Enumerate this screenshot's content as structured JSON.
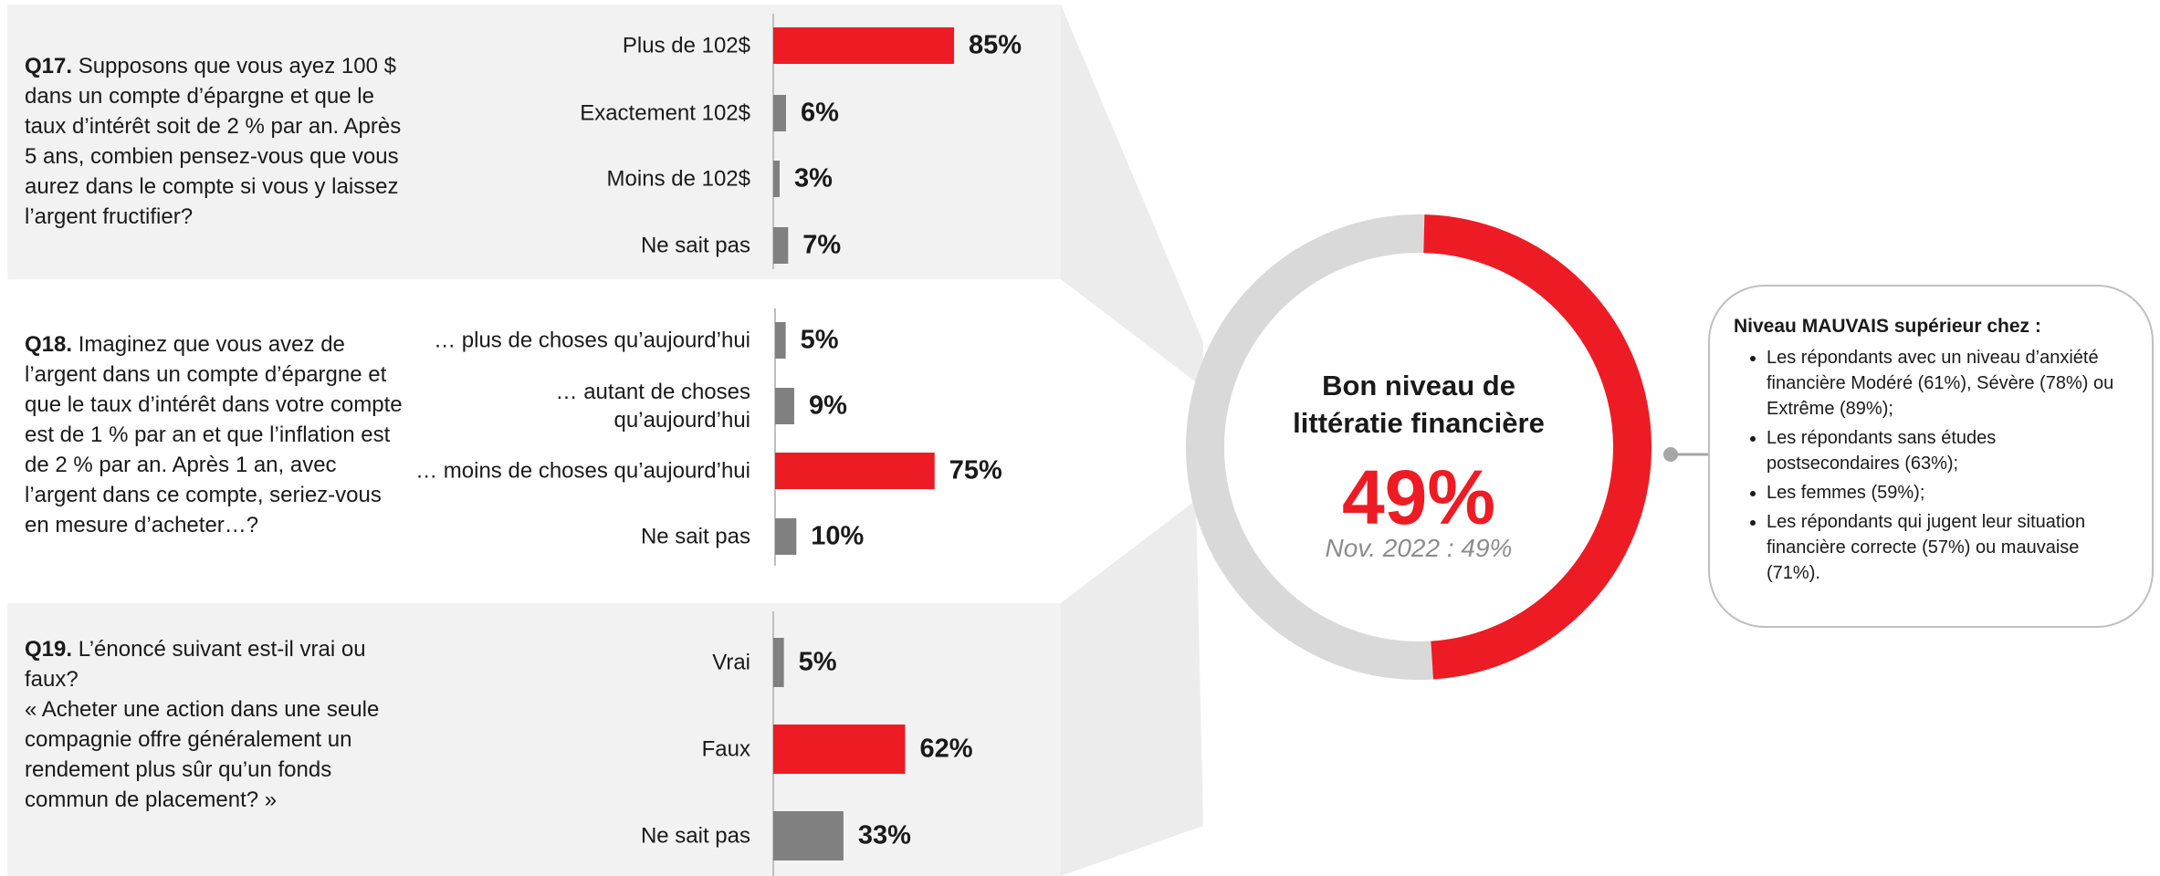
{
  "chart_data": [
    {
      "type": "bar",
      "question_number": "Q17.",
      "question": "Supposons que vous ayez 100 $ dans un compte d’épargne et que le taux d’intérêt soit de 2 % par an. Après 5 ans, combien pensez-vous que vous aurez dans le compte si vous y laissez l’argent fructifier?",
      "categories": [
        "Plus de 102$",
        "Exactement 102$",
        "Moins de 102$",
        "Ne sait pas"
      ],
      "values": [
        85,
        6,
        3,
        7
      ],
      "value_labels": [
        "85%",
        "6%",
        "3%",
        "7%"
      ],
      "colors": [
        "#ed1c24",
        "#808080",
        "#808080",
        "#808080"
      ]
    },
    {
      "type": "bar",
      "question_number": "Q18.",
      "question": "Imaginez que vous avez de l’argent dans un compte d’épargne et que le taux d’intérêt dans votre compte est de 1 % par an et que l’inflation est de 2 % par an. Après 1 an, avec l’argent dans ce compte, seriez-vous en mesure d’acheter…?",
      "categories": [
        "… plus de choses qu’aujourd’hui",
        "… autant de choses\nqu’aujourd’hui",
        "… moins de choses qu’aujourd’hui",
        "Ne sait pas"
      ],
      "values": [
        5,
        9,
        75,
        10
      ],
      "value_labels": [
        "5%",
        "9%",
        "75%",
        "10%"
      ],
      "colors": [
        "#808080",
        "#808080",
        "#ed1c24",
        "#808080"
      ]
    },
    {
      "type": "bar",
      "question_number": "Q19.",
      "question": "L’énoncé suivant est-il vrai ou faux?\n« Acheter une action dans une seule compagnie offre généralement un rendement plus sûr qu’un fonds commun de placement? »",
      "categories": [
        "Vrai",
        "Faux",
        "Ne sait pas"
      ],
      "values": [
        5,
        62,
        33
      ],
      "value_labels": [
        "5%",
        "62%",
        "33%"
      ],
      "colors": [
        "#808080",
        "#ed1c24",
        "#808080"
      ]
    },
    {
      "type": "pie",
      "title": "Bon niveau de\nlittératie financière",
      "values": [
        49
      ],
      "value_labels": [
        "49%"
      ],
      "subtitle": "Nov. 2022 : 49%",
      "color": "#ed1c24"
    }
  ],
  "callout": {
    "title": "Niveau MAUVAIS supérieur chez :",
    "items": [
      "Les répondants avec un niveau d’anxiété financière Modéré (61%), Sévère (78%) ou Extrême (89%);",
      "Les répondants sans études postsecondaires (63%);",
      "Les femmes (59%);",
      "Les répondants qui jugent leur situation financière correcte (57%) ou mauvaise (71%)."
    ]
  }
}
